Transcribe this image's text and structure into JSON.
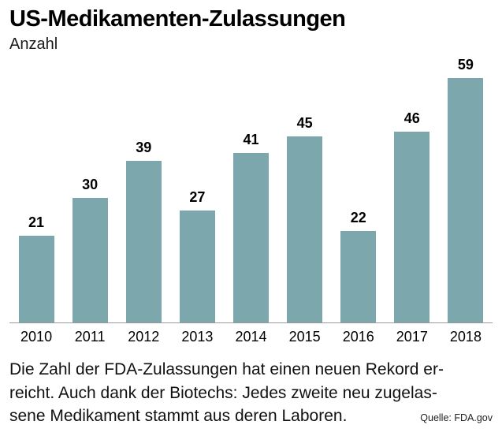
{
  "header": {
    "title": "US-Medikamenten-Zulassungen",
    "subtitle": "Anzahl"
  },
  "chart_data": {
    "type": "bar",
    "title": "US-Medikamenten-Zulassungen",
    "ylabel": "Anzahl",
    "xlabel": "",
    "categories": [
      "2010",
      "2011",
      "2012",
      "2013",
      "2014",
      "2015",
      "2016",
      "2017",
      "2018"
    ],
    "values": [
      21,
      30,
      39,
      27,
      41,
      45,
      22,
      46,
      59
    ],
    "ylim": [
      0,
      59
    ],
    "grid": false,
    "legend": "none",
    "value_labels": true,
    "bar_color": "#7CA7AD",
    "axis_line_color": "#9a9a9a"
  },
  "caption": {
    "lines": [
      "Die Zahl der FDA-Zulassungen hat einen neuen Rekord er-",
      "reicht. Auch dank der Biotechs: Jedes zweite neu zugelas-",
      "sene Medikament stammt aus deren Laboren."
    ]
  },
  "source": "Quelle: FDA.gov"
}
